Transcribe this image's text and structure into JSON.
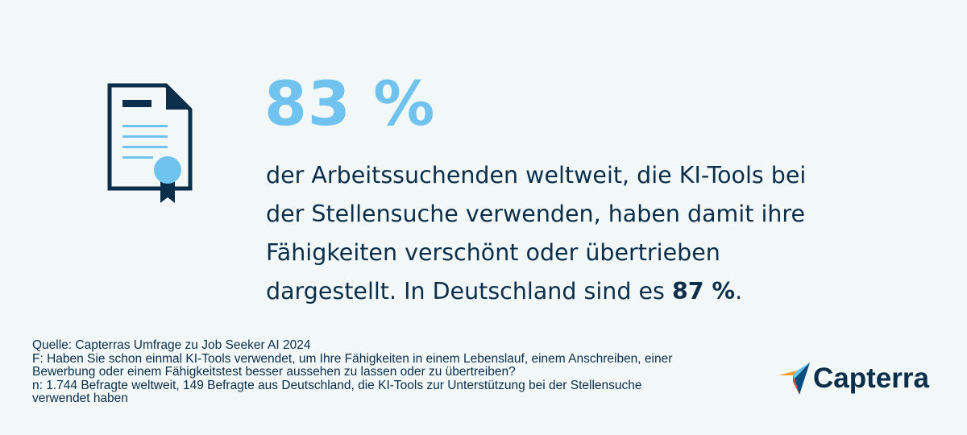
{
  "headline": {
    "value": "83 %"
  },
  "statement": {
    "lines": [
      "der Arbeitssuchenden weltweit, die KI-Tools bei",
      "der Stellensuche verwenden, haben damit ihre",
      "Fähigkeiten verschönt oder übertrieben"
    ],
    "last_line_prefix": "dargestellt. In Deutschland sind es ",
    "last_line_highlight": "87 %",
    "last_line_suffix": "."
  },
  "footnotes": {
    "lines": [
      "Quelle: Capterras Umfrage zu Job Seeker AI 2024",
      "F: Haben Sie schon einmal KI-Tools verwendet, um Ihre Fähigkeiten in einem Lebenslauf, einem Anschreiben, einer",
      "Bewerbung oder einem Fähigkeitstest besser aussehen zu lassen oder zu übertreiben?",
      "n: 1.744 Befragte weltweit, 149 Befragte aus Deutschland, die KI-Tools zur Unterstützung bei der Stellensuche",
      "verwendet haben"
    ]
  },
  "logo": {
    "text": "Capterra",
    "icon": "capterra-logo-icon"
  },
  "icons": {
    "document": "certificate-document-icon"
  },
  "colors": {
    "background": "#f2f7f8",
    "accent": "#6fc3ee",
    "text": "#0b2e4a",
    "logo_orange": "#ff9d28",
    "logo_blue": "#68c5ed",
    "logo_navy": "#044d80",
    "logo_red": "#e54747"
  }
}
